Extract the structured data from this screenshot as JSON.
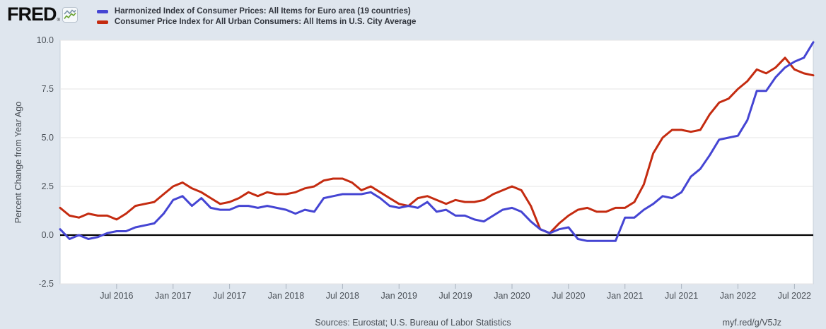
{
  "header": {
    "logo_text": "FRED",
    "logo_reg": "®",
    "legend": [
      {
        "label": "Harmonized Index of Consumer Prices: All Items for Euro area (19 countries)",
        "color": "#4545d3"
      },
      {
        "label": "Consumer Price Index for All Urban Consumers: All Items in U.S. City Average",
        "color": "#c42b10"
      }
    ]
  },
  "footer": {
    "sources": "Sources: Eurostat; U.S. Bureau of Labor Statistics",
    "link": "myf.red/g/V5Jz"
  },
  "colors": {
    "background": "#dfe6ee",
    "plot_background": "#ffffff",
    "plot_border": "#c7d0da",
    "gridline": "#e4e4e4",
    "zero_line": "#000000",
    "tick_mark": "#aab3bf",
    "axis_text": "#4a5057",
    "euro_line": "#4545d3",
    "us_line": "#c42b10"
  },
  "chart_data": {
    "type": "line",
    "title": "",
    "xlabel": "",
    "ylabel": "Percent Change from Year Ago",
    "ylim": [
      -2.5,
      10.0
    ],
    "y_ticks": [
      10.0,
      7.5,
      5.0,
      2.5,
      0.0,
      -2.5
    ],
    "y_tick_labels": [
      "10.0",
      "7.5",
      "5.0",
      "2.5",
      "0.0",
      "-2.5"
    ],
    "grid": true,
    "zero_line": true,
    "legend_position": "top-left",
    "frequency": "monthly",
    "x": [
      "2016-01",
      "2016-02",
      "2016-03",
      "2016-04",
      "2016-05",
      "2016-06",
      "2016-07",
      "2016-08",
      "2016-09",
      "2016-10",
      "2016-11",
      "2016-12",
      "2017-01",
      "2017-02",
      "2017-03",
      "2017-04",
      "2017-05",
      "2017-06",
      "2017-07",
      "2017-08",
      "2017-09",
      "2017-10",
      "2017-11",
      "2017-12",
      "2018-01",
      "2018-02",
      "2018-03",
      "2018-04",
      "2018-05",
      "2018-06",
      "2018-07",
      "2018-08",
      "2018-09",
      "2018-10",
      "2018-11",
      "2018-12",
      "2019-01",
      "2019-02",
      "2019-03",
      "2019-04",
      "2019-05",
      "2019-06",
      "2019-07",
      "2019-08",
      "2019-09",
      "2019-10",
      "2019-11",
      "2019-12",
      "2020-01",
      "2020-02",
      "2020-03",
      "2020-04",
      "2020-05",
      "2020-06",
      "2020-07",
      "2020-08",
      "2020-09",
      "2020-10",
      "2020-11",
      "2020-12",
      "2021-01",
      "2021-02",
      "2021-03",
      "2021-04",
      "2021-05",
      "2021-06",
      "2021-07",
      "2021-08",
      "2021-09",
      "2021-10",
      "2021-11",
      "2021-12",
      "2022-01",
      "2022-02",
      "2022-03",
      "2022-04",
      "2022-05",
      "2022-06",
      "2022-07",
      "2022-08",
      "2022-09"
    ],
    "x_ticks": [
      {
        "index": 6,
        "label": "Jul 2016"
      },
      {
        "index": 12,
        "label": "Jan 2017"
      },
      {
        "index": 18,
        "label": "Jul 2017"
      },
      {
        "index": 24,
        "label": "Jan 2018"
      },
      {
        "index": 30,
        "label": "Jul 2018"
      },
      {
        "index": 36,
        "label": "Jan 2019"
      },
      {
        "index": 42,
        "label": "Jul 2019"
      },
      {
        "index": 48,
        "label": "Jan 2020"
      },
      {
        "index": 54,
        "label": "Jul 2020"
      },
      {
        "index": 60,
        "label": "Jan 2021"
      },
      {
        "index": 66,
        "label": "Jul 2021"
      },
      {
        "index": 72,
        "label": "Jan 2022"
      },
      {
        "index": 78,
        "label": "Jul 2022"
      }
    ],
    "series": [
      {
        "name": "Harmonized Index of Consumer Prices: All Items for Euro area (19 countries)",
        "color": "#4545d3",
        "data_name": "series-line-euro-area-hicp",
        "values": [
          0.3,
          -0.2,
          0.0,
          -0.2,
          -0.1,
          0.1,
          0.2,
          0.2,
          0.4,
          0.5,
          0.6,
          1.1,
          1.8,
          2.0,
          1.5,
          1.9,
          1.4,
          1.3,
          1.3,
          1.5,
          1.5,
          1.4,
          1.5,
          1.4,
          1.3,
          1.1,
          1.3,
          1.2,
          1.9,
          2.0,
          2.1,
          2.1,
          2.1,
          2.2,
          1.9,
          1.5,
          1.4,
          1.5,
          1.4,
          1.7,
          1.2,
          1.3,
          1.0,
          1.0,
          0.8,
          0.7,
          1.0,
          1.3,
          1.4,
          1.2,
          0.7,
          0.3,
          0.1,
          0.3,
          0.4,
          -0.2,
          -0.3,
          -0.3,
          -0.3,
          -0.3,
          0.9,
          0.9,
          1.3,
          1.6,
          2.0,
          1.9,
          2.2,
          3.0,
          3.4,
          4.1,
          4.9,
          5.0,
          5.1,
          5.9,
          7.4,
          7.4,
          8.1,
          8.6,
          8.9,
          9.1,
          9.9
        ]
      },
      {
        "name": "Consumer Price Index for All Urban Consumers: All Items in U.S. City Average",
        "color": "#c42b10",
        "data_name": "series-line-us-cpi",
        "values": [
          1.4,
          1.0,
          0.9,
          1.1,
          1.0,
          1.0,
          0.8,
          1.1,
          1.5,
          1.6,
          1.7,
          2.1,
          2.5,
          2.7,
          2.4,
          2.2,
          1.9,
          1.6,
          1.7,
          1.9,
          2.2,
          2.0,
          2.2,
          2.1,
          2.1,
          2.2,
          2.4,
          2.5,
          2.8,
          2.9,
          2.9,
          2.7,
          2.3,
          2.5,
          2.2,
          1.9,
          1.6,
          1.5,
          1.9,
          2.0,
          1.8,
          1.6,
          1.8,
          1.7,
          1.7,
          1.8,
          2.1,
          2.3,
          2.5,
          2.3,
          1.5,
          0.3,
          0.1,
          0.6,
          1.0,
          1.3,
          1.4,
          1.2,
          1.2,
          1.4,
          1.4,
          1.7,
          2.6,
          4.2,
          5.0,
          5.4,
          5.4,
          5.3,
          5.4,
          6.2,
          6.8,
          7.0,
          7.5,
          7.9,
          8.5,
          8.3,
          8.6,
          9.1,
          8.5,
          8.3,
          8.2
        ]
      }
    ]
  }
}
